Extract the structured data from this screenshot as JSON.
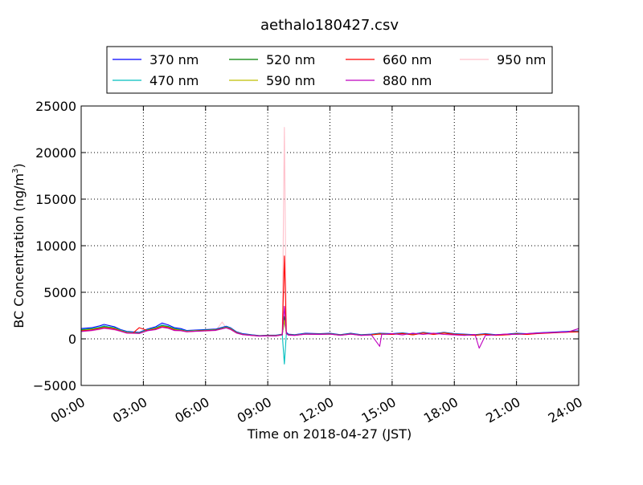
{
  "chart_data": {
    "type": "line",
    "title": "aethalo180427.csv",
    "xlabel": "Time on 2018-04-27 (JST)",
    "ylabel": "BC Concentration (ng/m³)",
    "ylabel_main": "BC Concentration (ng/m",
    "ylabel_sup": "3",
    "ylabel_end": ")",
    "xlim": [
      0,
      24
    ],
    "ylim": [
      -5000,
      25000
    ],
    "grid": true,
    "legend_position": "top",
    "x_ticks": [
      {
        "value": 0,
        "label": "00:00"
      },
      {
        "value": 3,
        "label": "03:00"
      },
      {
        "value": 6,
        "label": "06:00"
      },
      {
        "value": 9,
        "label": "09:00"
      },
      {
        "value": 12,
        "label": "12:00"
      },
      {
        "value": 15,
        "label": "15:00"
      },
      {
        "value": 18,
        "label": "18:00"
      },
      {
        "value": 21,
        "label": "21:00"
      },
      {
        "value": 24,
        "label": "24:00"
      }
    ],
    "y_ticks": [
      {
        "value": 25000,
        "label": "25000"
      },
      {
        "value": 20000,
        "label": "20000"
      },
      {
        "value": 15000,
        "label": "15000"
      },
      {
        "value": 10000,
        "label": "10000"
      },
      {
        "value": 5000,
        "label": "5000"
      },
      {
        "value": 0,
        "label": "0"
      },
      {
        "value": -5000,
        "label": "−5000"
      }
    ],
    "series": [
      {
        "name": "370 nm",
        "color": "#0000ff",
        "x": [
          0,
          0.5,
          0.9,
          1.1,
          1.3,
          1.6,
          1.9,
          2.2,
          2.5,
          2.8,
          3.2,
          3.6,
          3.9,
          4.2,
          4.5,
          4.8,
          5.1,
          5.5,
          6.0,
          6.5,
          7.0,
          7.2,
          7.5,
          7.8,
          8.2,
          8.6,
          9.0,
          9.4,
          9.7,
          9.8,
          9.9,
          10.0,
          10.3,
          10.8,
          11.5,
          12.0,
          12.5,
          13.0,
          13.5,
          14.0,
          14.4,
          15.0,
          15.5,
          16.0,
          16.5,
          17.0,
          17.5,
          18.0,
          18.5,
          19.0,
          19.5,
          20.0,
          20.5,
          21.0,
          21.5,
          22.0,
          22.5,
          23.0,
          23.5,
          24.0
        ],
        "y": [
          1100,
          1200,
          1400,
          1550,
          1450,
          1300,
          1000,
          800,
          750,
          700,
          1050,
          1300,
          1700,
          1500,
          1200,
          1100,
          900,
          950,
          1000,
          1050,
          1350,
          1200,
          750,
          550,
          450,
          350,
          400,
          400,
          500,
          1900,
          700,
          500,
          450,
          600,
          550,
          600,
          450,
          600,
          450,
          500,
          600,
          550,
          650,
          500,
          700,
          550,
          700,
          550,
          500,
          450,
          550,
          450,
          500,
          600,
          550,
          650,
          700,
          750,
          800,
          850
        ]
      },
      {
        "name": "470 nm",
        "color": "#00bfbf",
        "x": [
          0,
          0.5,
          0.9,
          1.1,
          1.3,
          1.6,
          1.9,
          2.2,
          2.5,
          2.8,
          3.2,
          3.6,
          3.9,
          4.2,
          4.5,
          4.8,
          5.1,
          5.5,
          6.0,
          6.5,
          7.0,
          7.2,
          7.5,
          7.8,
          8.2,
          8.6,
          9.0,
          9.4,
          9.7,
          9.8,
          9.9,
          10.0,
          10.3,
          10.8,
          11.5,
          12.0,
          12.5,
          13.0,
          13.5,
          14.0,
          14.4,
          15.0,
          15.5,
          16.0,
          16.5,
          17.0,
          17.5,
          18.0,
          18.5,
          19.0,
          19.5,
          20.0,
          20.5,
          21.0,
          21.5,
          22.0,
          22.5,
          23.0,
          23.5,
          24.0
        ],
        "y": [
          1000,
          1100,
          1250,
          1400,
          1300,
          1200,
          950,
          750,
          700,
          650,
          1000,
          1200,
          1500,
          1350,
          1100,
          1000,
          850,
          900,
          950,
          1000,
          1300,
          1150,
          700,
          500,
          420,
          330,
          380,
          370,
          480,
          -2700,
          600,
          450,
          420,
          550,
          520,
          560,
          430,
          560,
          420,
          470,
          560,
          520,
          610,
          470,
          660,
          520,
          660,
          520,
          470,
          420,
          520,
          420,
          470,
          560,
          520,
          610,
          660,
          710,
          760,
          800
        ]
      },
      {
        "name": "520 nm",
        "color": "#008000",
        "x": [
          0,
          0.5,
          0.9,
          1.1,
          1.3,
          1.6,
          1.9,
          2.2,
          2.5,
          2.8,
          3.2,
          3.6,
          3.9,
          4.2,
          4.5,
          4.8,
          5.1,
          5.5,
          6.0,
          6.5,
          7.0,
          7.2,
          7.5,
          7.8,
          8.2,
          8.6,
          9.0,
          9.4,
          9.7,
          9.8,
          9.9,
          10.0,
          10.3,
          10.8,
          11.5,
          12.0,
          12.5,
          13.0,
          13.5,
          14.0,
          14.4,
          15.0,
          15.5,
          16.0,
          16.5,
          17.0,
          17.5,
          18.0,
          18.5,
          19.0,
          19.5,
          20.0,
          20.5,
          21.0,
          21.5,
          22.0,
          22.5,
          23.0,
          23.5,
          24.0
        ],
        "y": [
          950,
          1050,
          1200,
          1300,
          1250,
          1150,
          900,
          700,
          650,
          620,
          950,
          1150,
          1400,
          1300,
          1050,
          950,
          820,
          870,
          920,
          970,
          1250,
          1100,
          680,
          480,
          400,
          320,
          360,
          350,
          460,
          2400,
          580,
          430,
          400,
          530,
          500,
          540,
          410,
          540,
          400,
          450,
          540,
          500,
          590,
          450,
          640,
          500,
          640,
          500,
          450,
          400,
          500,
          400,
          450,
          540,
          500,
          590,
          640,
          690,
          740,
          780
        ]
      },
      {
        "name": "590 nm",
        "color": "#bfbf00",
        "x": [
          0,
          0.5,
          0.9,
          1.1,
          1.3,
          1.6,
          1.9,
          2.2,
          2.5,
          2.8,
          3.2,
          3.6,
          3.9,
          4.2,
          4.5,
          4.8,
          5.1,
          5.5,
          6.0,
          6.5,
          7.0,
          7.2,
          7.5,
          7.8,
          8.2,
          8.6,
          9.0,
          9.4,
          9.7,
          9.8,
          9.9,
          10.0,
          10.3,
          10.8,
          11.5,
          12.0,
          12.5,
          13.0,
          13.5,
          14.0,
          14.4,
          15.0,
          15.5,
          16.0,
          16.5,
          17.0,
          17.5,
          18.0,
          18.5,
          19.0,
          19.5,
          20.0,
          20.5,
          21.0,
          21.5,
          22.0,
          22.5,
          23.0,
          23.5,
          24.0
        ],
        "y": [
          900,
          1000,
          1150,
          1250,
          1200,
          1100,
          880,
          680,
          630,
          600,
          920,
          1100,
          1350,
          1250,
          1000,
          920,
          800,
          850,
          900,
          950,
          1220,
          1080,
          660,
          470,
          390,
          310,
          350,
          340,
          450,
          2000,
          570,
          420,
          390,
          520,
          490,
          530,
          400,
          530,
          390,
          440,
          530,
          490,
          580,
          440,
          630,
          490,
          630,
          490,
          440,
          390,
          490,
          390,
          440,
          530,
          490,
          580,
          630,
          680,
          730,
          770
        ]
      },
      {
        "name": "660 nm",
        "color": "#ff0000",
        "x": [
          0,
          0.5,
          0.9,
          1.1,
          1.3,
          1.6,
          1.9,
          2.2,
          2.5,
          2.8,
          3.2,
          3.6,
          3.9,
          4.2,
          4.5,
          4.8,
          5.1,
          5.5,
          6.0,
          6.5,
          7.0,
          7.2,
          7.5,
          7.8,
          8.2,
          8.6,
          9.0,
          9.4,
          9.7,
          9.8,
          9.9,
          10.0,
          10.3,
          10.8,
          11.5,
          12.0,
          12.5,
          13.0,
          13.5,
          14.0,
          14.4,
          15.0,
          15.5,
          16.0,
          16.5,
          17.0,
          17.5,
          18.0,
          18.5,
          19.0,
          19.5,
          20.0,
          20.5,
          21.0,
          21.5,
          22.0,
          22.5,
          23.0,
          23.5,
          24.0
        ],
        "y": [
          850,
          950,
          1100,
          1200,
          1150,
          1050,
          850,
          650,
          620,
          1200,
          900,
          1050,
          1300,
          1200,
          950,
          900,
          780,
          830,
          880,
          930,
          1200,
          1050,
          640,
          460,
          380,
          300,
          340,
          330,
          440,
          8900,
          560,
          410,
          380,
          510,
          480,
          520,
          390,
          520,
          380,
          430,
          520,
          480,
          570,
          430,
          620,
          480,
          620,
          480,
          430,
          380,
          480,
          380,
          430,
          520,
          480,
          570,
          620,
          670,
          720,
          760
        ]
      },
      {
        "name": "880 nm",
        "color": "#bf00bf",
        "x": [
          0,
          0.5,
          0.9,
          1.1,
          1.3,
          1.6,
          1.9,
          2.2,
          2.5,
          2.8,
          3.2,
          3.6,
          3.9,
          4.2,
          4.5,
          4.8,
          5.1,
          5.5,
          6.0,
          6.5,
          7.0,
          7.2,
          7.5,
          7.8,
          8.2,
          8.6,
          9.0,
          9.4,
          9.7,
          9.8,
          9.9,
          10.0,
          10.3,
          10.8,
          11.5,
          12.0,
          12.5,
          13.0,
          13.5,
          14.0,
          14.4,
          14.5,
          14.6,
          15.0,
          15.5,
          16.0,
          16.5,
          17.0,
          17.5,
          18.0,
          18.5,
          19.0,
          19.2,
          19.5,
          20.0,
          20.5,
          21.0,
          21.5,
          22.0,
          22.5,
          23.0,
          23.5,
          24.0
        ],
        "y": [
          800,
          900,
          1050,
          1150,
          1100,
          1000,
          820,
          620,
          600,
          580,
          880,
          1000,
          1250,
          1150,
          900,
          880,
          760,
          810,
          860,
          910,
          1180,
          1020,
          620,
          450,
          370,
          290,
          330,
          320,
          430,
          3500,
          550,
          400,
          370,
          500,
          470,
          510,
          380,
          510,
          370,
          420,
          -800,
          510,
          470,
          560,
          420,
          610,
          470,
          610,
          470,
          420,
          370,
          470,
          -1000,
          370,
          420,
          510,
          470,
          560,
          610,
          660,
          710,
          750,
          1100
        ]
      },
      {
        "name": "950 nm",
        "color": "#ffc0cb",
        "x": [
          0,
          0.5,
          0.9,
          1.1,
          1.3,
          1.6,
          1.9,
          2.2,
          2.5,
          2.8,
          3.2,
          3.6,
          3.9,
          4.2,
          4.5,
          4.8,
          5.1,
          5.5,
          6.0,
          6.5,
          6.8,
          7.0,
          7.2,
          7.5,
          7.8,
          8.2,
          8.6,
          9.0,
          9.4,
          9.7,
          9.8,
          9.9,
          10.0,
          10.3,
          10.8,
          11.5,
          12.0,
          12.5,
          13.0,
          13.5,
          14.0,
          14.4,
          15.0,
          15.5,
          16.0,
          16.5,
          17.0,
          17.5,
          18.0,
          18.5,
          19.0,
          19.5,
          20.0,
          20.5,
          21.0,
          21.5,
          22.0,
          22.5,
          23.0,
          23.5,
          24.0
        ],
        "y": [
          750,
          850,
          1000,
          1100,
          1050,
          950,
          800,
          600,
          580,
          560,
          860,
          980,
          1200,
          1100,
          880,
          860,
          740,
          790,
          840,
          890,
          1800,
          1160,
          1000,
          600,
          440,
          360,
          280,
          320,
          310,
          420,
          22700,
          540,
          390,
          360,
          490,
          460,
          500,
          370,
          500,
          360,
          410,
          500,
          460,
          550,
          410,
          600,
          460,
          600,
          460,
          410,
          360,
          460,
          360,
          410,
          500,
          460,
          550,
          600,
          650,
          700,
          740
        ]
      }
    ]
  }
}
